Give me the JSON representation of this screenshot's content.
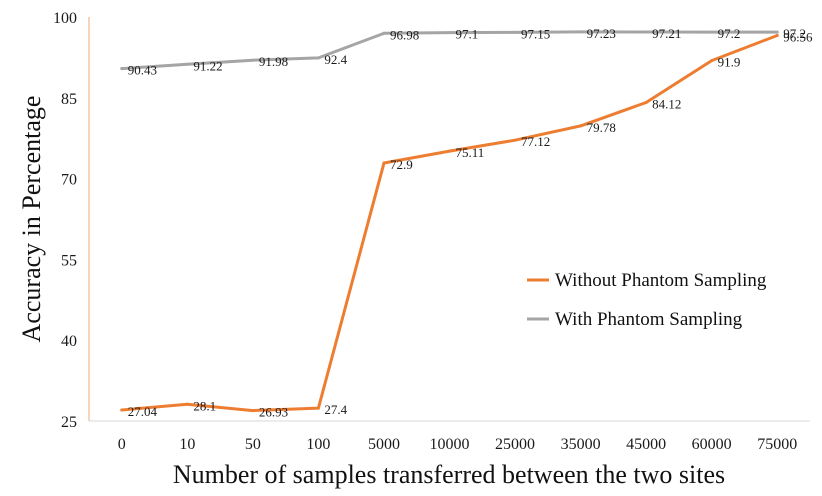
{
  "chart_data": {
    "type": "line",
    "categories": [
      "0",
      "10",
      "50",
      "100",
      "5000",
      "10000",
      "25000",
      "35000",
      "45000",
      "60000",
      "75000"
    ],
    "series": [
      {
        "name": "Without Phantom Sampling",
        "values": [
          27.04,
          28.1,
          26.93,
          27.4,
          72.9,
          75.11,
          77.12,
          79.78,
          84.12,
          91.9,
          96.56
        ],
        "labels": [
          "27.04",
          "28.1",
          "26.93",
          "27.4",
          "72.9",
          "75.11",
          "77.12",
          "79.78",
          "84.12",
          "91.9",
          "96.56"
        ],
        "color": "#ED7D31"
      },
      {
        "name": "With Phantom Sampling",
        "values": [
          90.43,
          91.22,
          91.98,
          92.4,
          96.98,
          97.1,
          97.15,
          97.23,
          97.21,
          97.2,
          97.2
        ],
        "labels": [
          "90.43",
          "91.22",
          "91.98",
          "92.4",
          "96.98",
          "97.1",
          "97.15",
          "97.23",
          "97.21",
          "97.2",
          "97.2"
        ],
        "color": "#A5A5A5"
      }
    ],
    "title": "",
    "xlabel": "Number of samples transferred between the two sites",
    "ylabel": "Accuracy in Percentage",
    "ylim": [
      25,
      100
    ],
    "yticks": [
      "25",
      "40",
      "55",
      "70",
      "85",
      "100"
    ],
    "grid": false,
    "legend_position": "right"
  }
}
